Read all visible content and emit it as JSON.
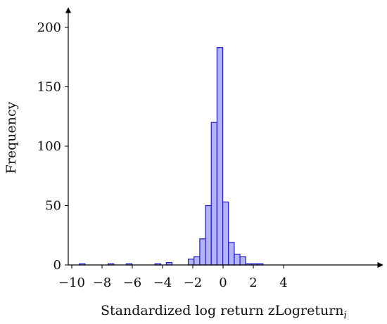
{
  "chart_data": {
    "type": "bar",
    "title": "",
    "xlabel": "Standardized log return zLogreturn",
    "xlabel_subscript": "i",
    "ylabel": "Frequency",
    "xlim": [
      -10.2,
      5.0
    ],
    "ylim": [
      0,
      210
    ],
    "x_ticks": [
      -10,
      -8,
      -6,
      -4,
      -2,
      0,
      2,
      4
    ],
    "x_tick_labels": [
      "−10",
      "−8",
      "−6",
      "−4",
      "−2",
      "0",
      "2",
      "4"
    ],
    "y_ticks": [
      0,
      50,
      100,
      150,
      200
    ],
    "y_tick_labels": [
      "0",
      "50",
      "100",
      "150",
      "200"
    ],
    "bin_width": 0.38,
    "bins": [
      {
        "x0": -9.5,
        "count": 1
      },
      {
        "x0": -7.6,
        "count": 1
      },
      {
        "x0": -6.4,
        "count": 1
      },
      {
        "x0": -4.5,
        "count": 1
      },
      {
        "x0": -3.75,
        "count": 2
      },
      {
        "x0": -2.3,
        "count": 5
      },
      {
        "x0": -1.92,
        "count": 7
      },
      {
        "x0": -1.54,
        "count": 22
      },
      {
        "x0": -1.16,
        "count": 50
      },
      {
        "x0": -0.78,
        "count": 120
      },
      {
        "x0": -0.4,
        "count": 183
      },
      {
        "x0": -0.02,
        "count": 53
      },
      {
        "x0": 0.36,
        "count": 19
      },
      {
        "x0": 0.74,
        "count": 9
      },
      {
        "x0": 1.12,
        "count": 7
      },
      {
        "x0": 1.5,
        "count": 1
      },
      {
        "x0": 1.88,
        "count": 1
      },
      {
        "x0": 2.26,
        "count": 1
      }
    ],
    "grid": false,
    "colors": {
      "bar_fill": "#b3b3f5",
      "bar_stroke": "#1a1acc",
      "axis": "#000000"
    }
  }
}
